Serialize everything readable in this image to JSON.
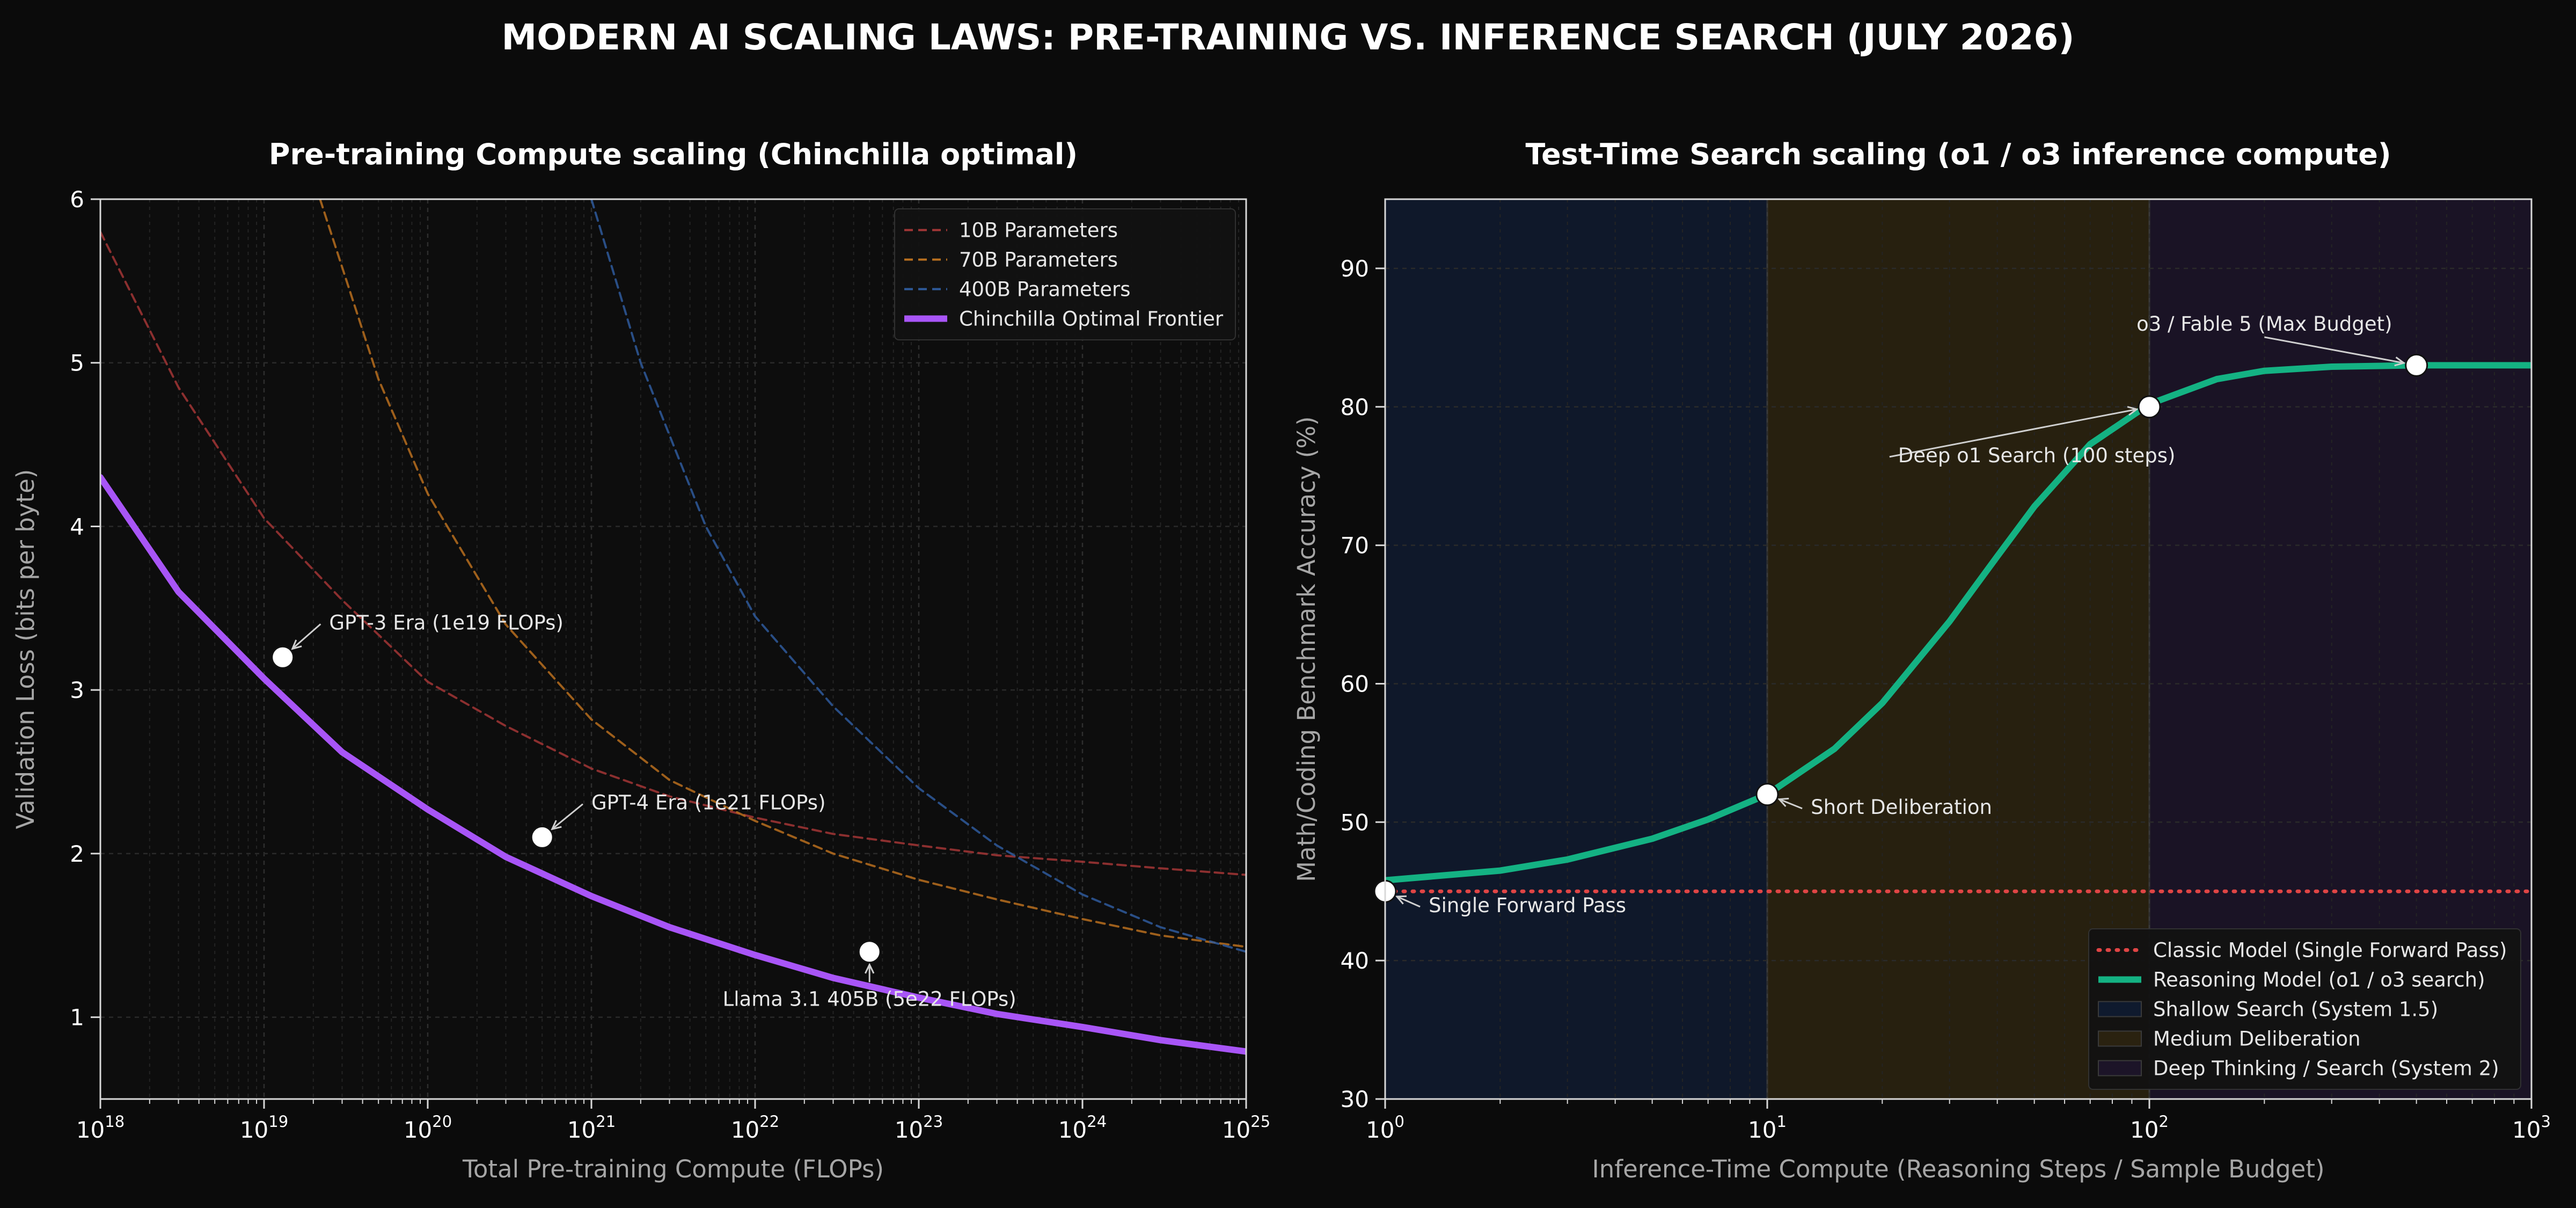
{
  "title": "MODERN AI SCALING LAWS: PRE-TRAINING VS. INFERENCE SEARCH (JULY 2026)",
  "colors": {
    "background": "#0b0b0b",
    "panel": "#0d0d0d",
    "frame": "#d8d8d8",
    "text": "#ffffff",
    "muted": "#a6a6a6",
    "params10b": "#a33636",
    "params70b": "#b86f1f",
    "params400b": "#2f5b9c",
    "chinchilla": "#a855f7",
    "classic": "#e04545",
    "reasoning": "#14b283",
    "shallow_band": "#0f1a2e",
    "medium_band": "#2a2210",
    "deep_band": "#1c1428"
  },
  "chart_data": [
    {
      "type": "line",
      "title": "Pre-training Compute scaling (Chinchilla optimal)",
      "xlabel": "Total Pre-training Compute (FLOPs)",
      "ylabel": "Validation Loss (bits per byte)",
      "xscale": "log",
      "xlim": [
        1e+18,
        1e+25
      ],
      "ylim": [
        0.5,
        6
      ],
      "x_ticks": [
        {
          "value": 1e+18,
          "base": "10",
          "exp": "18"
        },
        {
          "value": 1e+19,
          "base": "10",
          "exp": "19"
        },
        {
          "value": 1e+20,
          "base": "10",
          "exp": "20"
        },
        {
          "value": 1e+21,
          "base": "10",
          "exp": "21"
        },
        {
          "value": 1e+22,
          "base": "10",
          "exp": "22"
        },
        {
          "value": 1e+23,
          "base": "10",
          "exp": "23"
        },
        {
          "value": 1e+24,
          "base": "10",
          "exp": "24"
        },
        {
          "value": 1e+25,
          "base": "10",
          "exp": "25"
        }
      ],
      "y_ticks": [
        1,
        2,
        3,
        4,
        5,
        6
      ],
      "grid": true,
      "legend_position": "top-right",
      "series": [
        {
          "name": "10B Parameters",
          "style": "dashed",
          "color": "#a33636",
          "x": [
            1e+18,
            3e+18,
            1e+19,
            3e+19,
            1e+20,
            3e+20,
            1e+21,
            3e+21,
            1e+22,
            3e+22,
            1e+23,
            3e+23,
            1e+24,
            3e+24,
            1e+25
          ],
          "y": [
            5.8,
            4.85,
            4.05,
            3.55,
            3.05,
            2.78,
            2.52,
            2.35,
            2.22,
            2.12,
            2.05,
            1.99,
            1.95,
            1.91,
            1.87
          ]
        },
        {
          "name": "70B Parameters",
          "style": "dashed",
          "color": "#b86f1f",
          "x": [
            2.2e+19,
            5e+19,
            1e+20,
            3e+20,
            1e+21,
            3e+21,
            1e+22,
            3e+22,
            1e+23,
            3e+23,
            1e+24,
            3e+24,
            1e+25
          ],
          "y": [
            6.0,
            4.9,
            4.2,
            3.4,
            2.82,
            2.45,
            2.2,
            2.0,
            1.84,
            1.72,
            1.6,
            1.5,
            1.43
          ]
        },
        {
          "name": "400B Parameters",
          "style": "dashed",
          "color": "#2f5b9c",
          "x": [
            1e+21,
            2e+21,
            5e+21,
            1e+22,
            3e+22,
            1e+23,
            3e+23,
            1e+24,
            3e+24,
            1e+25
          ],
          "y": [
            6.0,
            5.0,
            4.0,
            3.45,
            2.9,
            2.4,
            2.05,
            1.75,
            1.55,
            1.4
          ]
        },
        {
          "name": "Chinchilla Optimal Frontier",
          "style": "solid",
          "color": "#a855f7",
          "x": [
            1e+18,
            3e+18,
            1e+19,
            3e+19,
            1e+20,
            3e+20,
            1e+21,
            3e+21,
            1e+22,
            3e+22,
            1e+23,
            3e+23,
            1e+24,
            3e+24,
            1e+25
          ],
          "y": [
            4.3,
            3.6,
            3.07,
            2.62,
            2.27,
            1.98,
            1.74,
            1.55,
            1.38,
            1.24,
            1.12,
            1.02,
            0.94,
            0.86,
            0.79
          ]
        }
      ],
      "points": [
        {
          "label": "GPT-3 Era (1e19 FLOPs)",
          "x": 1.3e+19,
          "y": 3.2,
          "label_x": 2.5e+19,
          "label_y": 3.37,
          "anchor": "start"
        },
        {
          "label": "GPT-4 Era (1e21 FLOPs)",
          "x": 5e+20,
          "y": 2.1,
          "label_x": 1e+21,
          "label_y": 2.27,
          "anchor": "start"
        },
        {
          "label": "Llama 3.1 405B (5e22 FLOPs)",
          "x": 5e+22,
          "y": 1.4,
          "label_x": 5e+22,
          "label_y": 1.07,
          "anchor": "middle"
        }
      ]
    },
    {
      "type": "line",
      "title": "Test-Time Search scaling (o1 / o3 inference compute)",
      "xlabel": "Inference-Time Compute (Reasoning Steps / Sample Budget)",
      "ylabel": "Math/Coding Benchmark Accuracy (%)",
      "xscale": "log",
      "xlim": [
        1,
        1000
      ],
      "ylim": [
        30,
        95
      ],
      "x_ticks": [
        {
          "value": 1,
          "base": "10",
          "exp": "0"
        },
        {
          "value": 10,
          "base": "10",
          "exp": "1"
        },
        {
          "value": 100,
          "base": "10",
          "exp": "2"
        },
        {
          "value": 1000,
          "base": "10",
          "exp": "3"
        }
      ],
      "y_ticks": [
        30,
        40,
        50,
        60,
        70,
        80,
        90
      ],
      "grid": true,
      "legend_position": "bottom-right",
      "bands": [
        {
          "name": "Shallow Search (System 1.5)",
          "from": 1,
          "to": 10,
          "color": "#0f1a2e"
        },
        {
          "name": "Medium Deliberation",
          "from": 10,
          "to": 100,
          "color": "#2a2210"
        },
        {
          "name": "Deep Thinking / Search (System 2)",
          "from": 100,
          "to": 1000,
          "color": "#1c1428"
        }
      ],
      "series": [
        {
          "name": "Classic Model (Single Forward Pass)",
          "style": "dotted",
          "color": "#e04545",
          "x": [
            1,
            1000
          ],
          "y": [
            45,
            45
          ]
        },
        {
          "name": "Reasoning Model (o1 / o3 search)",
          "style": "solid",
          "color": "#14b283",
          "x": [
            1,
            2,
            3,
            5,
            7,
            10,
            15,
            20,
            30,
            40,
            50,
            70,
            100,
            150,
            200,
            300,
            500,
            700,
            1000
          ],
          "y": [
            45.8,
            46.5,
            47.3,
            48.8,
            50.2,
            52,
            55.3,
            58.6,
            64.5,
            69.2,
            72.8,
            77.3,
            80.2,
            82.0,
            82.6,
            82.9,
            83.0,
            83.0,
            83.0
          ]
        }
      ],
      "points": [
        {
          "label": "Single Forward Pass",
          "x": 1,
          "y": 45,
          "label_x": 1.3,
          "label_y": 43.5,
          "anchor": "start"
        },
        {
          "label": "Short Deliberation",
          "x": 10,
          "y": 52,
          "label_x": 13,
          "label_y": 50.6,
          "anchor": "start"
        },
        {
          "label": "Deep o1 Search (100 steps)",
          "x": 100,
          "y": 80,
          "label_x": 22,
          "label_y": 76,
          "anchor": "start"
        },
        {
          "label": "o3 / Fable 5 (Max Budget)",
          "x": 500,
          "y": 83,
          "label_x": 200,
          "label_y": 85.5,
          "anchor": "middle"
        }
      ]
    }
  ]
}
